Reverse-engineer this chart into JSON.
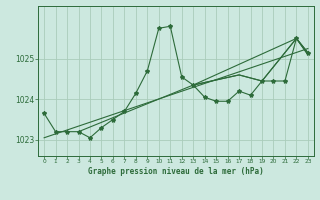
{
  "background_color": "#cce8df",
  "grid_color": "#aaccbb",
  "line_color": "#2d6b3a",
  "xlabel": "Graphe pression niveau de la mer (hPa)",
  "xlim": [
    -0.5,
    23.5
  ],
  "ylim": [
    1022.6,
    1026.3
  ],
  "yticks": [
    1023,
    1024,
    1025
  ],
  "xticks": [
    0,
    1,
    2,
    3,
    4,
    5,
    6,
    7,
    8,
    9,
    10,
    11,
    12,
    13,
    14,
    15,
    16,
    17,
    18,
    19,
    20,
    21,
    22,
    23
  ],
  "main_series_x": [
    0,
    1,
    2,
    3,
    4,
    5,
    6,
    7,
    8,
    9,
    10,
    11,
    12,
    13,
    14,
    15,
    16,
    17,
    18,
    19,
    20,
    21,
    22,
    23
  ],
  "main_series_y": [
    1023.65,
    1023.2,
    1023.2,
    1023.2,
    1023.05,
    1023.3,
    1023.5,
    1023.7,
    1024.15,
    1024.7,
    1025.75,
    1025.8,
    1024.55,
    1024.35,
    1024.05,
    1023.95,
    1023.95,
    1024.2,
    1024.1,
    1024.45,
    1024.45,
    1024.45,
    1025.5,
    1025.15
  ],
  "extra_lines": [
    {
      "x": [
        0,
        23
      ],
      "y": [
        1023.05,
        1025.25
      ]
    },
    {
      "x": [
        3,
        13,
        22,
        23
      ],
      "y": [
        1023.2,
        1024.35,
        1025.5,
        1025.1
      ]
    },
    {
      "x": [
        13,
        17,
        19,
        22,
        23
      ],
      "y": [
        1024.35,
        1024.6,
        1024.45,
        1025.5,
        1025.1
      ]
    },
    {
      "x": [
        13,
        17,
        19,
        22,
        23
      ],
      "y": [
        1024.35,
        1024.6,
        1024.45,
        1025.5,
        1025.15
      ]
    }
  ]
}
